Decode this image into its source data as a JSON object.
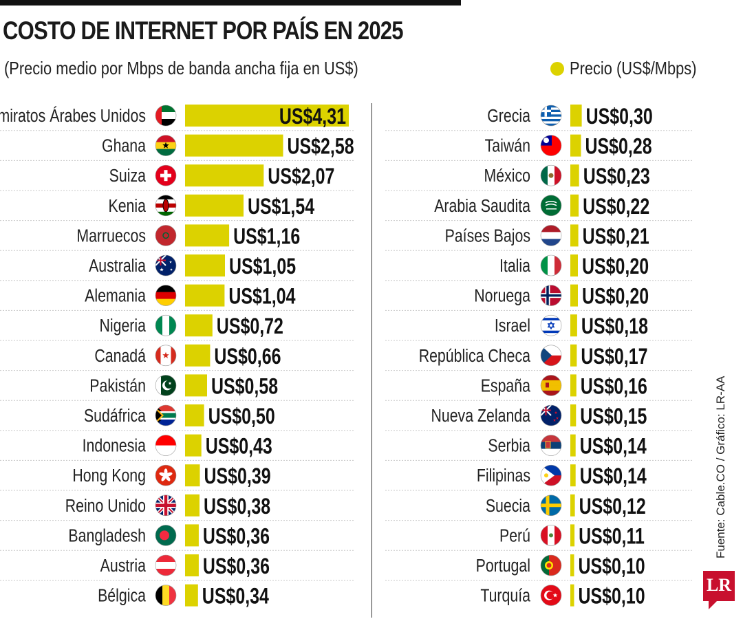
{
  "title": "COSTO DE INTERNET POR PAÍS EN 2025",
  "subtitle": "(Precio medio por Mbps de banda ancha fija en US$)",
  "legend_label": "Precio (US$/Mbps)",
  "source": "Fuente: Cable.CO / Gráfico: LR-AA",
  "logo_text": "LR",
  "bar_color": "#dcd200",
  "chart_data": {
    "type": "bar",
    "orientation": "horizontal",
    "title": "COSTO DE INTERNET POR PAÍS EN 2025",
    "subtitle": "(Precio medio por Mbps de banda ancha fija en US$)",
    "series": [
      {
        "name": "Precio (US$/Mbps)",
        "columns": [
          [
            {
              "country": "Emiratos Árabes Unidos",
              "value": 4.31,
              "label": "US$4,31",
              "flag": "uae-flag-icon"
            },
            {
              "country": "Ghana",
              "value": 2.58,
              "label": "US$2,58",
              "flag": "ghana-flag-icon"
            },
            {
              "country": "Suiza",
              "value": 2.07,
              "label": "US$2,07",
              "flag": "switzerland-flag-icon"
            },
            {
              "country": "Kenia",
              "value": 1.54,
              "label": "US$1,54",
              "flag": "kenya-flag-icon"
            },
            {
              "country": "Marruecos",
              "value": 1.16,
              "label": "US$1,16",
              "flag": "morocco-flag-icon"
            },
            {
              "country": "Australia",
              "value": 1.05,
              "label": "US$1,05",
              "flag": "australia-flag-icon"
            },
            {
              "country": "Alemania",
              "value": 1.04,
              "label": "US$1,04",
              "flag": "germany-flag-icon"
            },
            {
              "country": "Nigeria",
              "value": 0.72,
              "label": "US$0,72",
              "flag": "nigeria-flag-icon"
            },
            {
              "country": "Canadá",
              "value": 0.66,
              "label": "US$0,66",
              "flag": "canada-flag-icon"
            },
            {
              "country": "Pakistán",
              "value": 0.58,
              "label": "US$0,58",
              "flag": "pakistan-flag-icon"
            },
            {
              "country": "Sudáfrica",
              "value": 0.5,
              "label": "US$0,50",
              "flag": "south-africa-flag-icon"
            },
            {
              "country": "Indonesia",
              "value": 0.43,
              "label": "US$0,43",
              "flag": "indonesia-flag-icon"
            },
            {
              "country": "Hong Kong",
              "value": 0.39,
              "label": "US$0,39",
              "flag": "hong-kong-flag-icon"
            },
            {
              "country": "Reino Unido",
              "value": 0.38,
              "label": "US$0,38",
              "flag": "uk-flag-icon"
            },
            {
              "country": "Bangladesh",
              "value": 0.36,
              "label": "US$0,36",
              "flag": "bangladesh-flag-icon"
            },
            {
              "country": "Austria",
              "value": 0.36,
              "label": "US$0,36",
              "flag": "austria-flag-icon"
            },
            {
              "country": "Bélgica",
              "value": 0.34,
              "label": "US$0,34",
              "flag": "belgium-flag-icon"
            }
          ],
          [
            {
              "country": "Grecia",
              "value": 0.3,
              "label": "US$0,30",
              "flag": "greece-flag-icon"
            },
            {
              "country": "Taiwán",
              "value": 0.28,
              "label": "US$0,28",
              "flag": "taiwan-flag-icon"
            },
            {
              "country": "México",
              "value": 0.23,
              "label": "US$0,23",
              "flag": "mexico-flag-icon"
            },
            {
              "country": "Arabia Saudita",
              "value": 0.22,
              "label": "US$0,22",
              "flag": "saudi-arabia-flag-icon"
            },
            {
              "country": "Países Bajos",
              "value": 0.21,
              "label": "US$0,21",
              "flag": "netherlands-flag-icon"
            },
            {
              "country": "Italia",
              "value": 0.2,
              "label": "US$0,20",
              "flag": "italy-flag-icon"
            },
            {
              "country": "Noruega",
              "value": 0.2,
              "label": "US$0,20",
              "flag": "norway-flag-icon"
            },
            {
              "country": "Israel",
              "value": 0.18,
              "label": "US$0,18",
              "flag": "israel-flag-icon"
            },
            {
              "country": "República Checa",
              "value": 0.17,
              "label": "US$0,17",
              "flag": "czech-flag-icon"
            },
            {
              "country": "España",
              "value": 0.16,
              "label": "US$0,16",
              "flag": "spain-flag-icon"
            },
            {
              "country": "Nueva Zelanda",
              "value": 0.15,
              "label": "US$0,15",
              "flag": "new-zealand-flag-icon"
            },
            {
              "country": "Serbia",
              "value": 0.14,
              "label": "US$0,14",
              "flag": "serbia-flag-icon"
            },
            {
              "country": "Filipinas",
              "value": 0.14,
              "label": "US$0,14",
              "flag": "philippines-flag-icon"
            },
            {
              "country": "Suecia",
              "value": 0.12,
              "label": "US$0,12",
              "flag": "sweden-flag-icon"
            },
            {
              "country": "Perú",
              "value": 0.11,
              "label": "US$0,11",
              "flag": "peru-flag-icon"
            },
            {
              "country": "Portugal",
              "value": 0.1,
              "label": "US$0,10",
              "flag": "portugal-flag-icon"
            },
            {
              "country": "Turquía",
              "value": 0.1,
              "label": "US$0,10",
              "flag": "turkey-flag-icon"
            }
          ]
        ]
      }
    ],
    "xlim": [
      0,
      4.31
    ],
    "grid": false,
    "legend_position": "top-right"
  }
}
